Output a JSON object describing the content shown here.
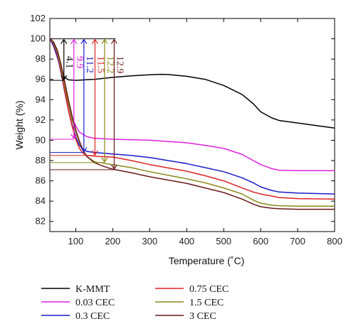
{
  "chart_data": {
    "type": "line",
    "title": "",
    "xlabel": "Temperature (˚C)",
    "ylabel": "Weight (%)",
    "xlim": [
      30,
      800
    ],
    "ylim": [
      81,
      102
    ],
    "xticks": [
      "100",
      "200",
      "300",
      "400",
      "500",
      "600",
      "700",
      "800"
    ],
    "yticks": [
      "82",
      "84",
      "86",
      "88",
      "90",
      "92",
      "94",
      "96",
      "98",
      "100",
      "102"
    ],
    "grid": false,
    "legend_position": "bottom",
    "series": [
      {
        "name": "K-MMT",
        "color": "#000000",
        "x": [
          30,
          40,
          50,
          60,
          70,
          80,
          100,
          150,
          200,
          250,
          300,
          330,
          350,
          400,
          450,
          500,
          550,
          580,
          600,
          630,
          650,
          700,
          750,
          800
        ],
        "y": [
          100,
          99.3,
          98.2,
          97.0,
          96.2,
          95.95,
          95.9,
          96.0,
          96.2,
          96.35,
          96.45,
          96.5,
          96.48,
          96.3,
          96.0,
          95.4,
          94.5,
          93.6,
          92.8,
          92.2,
          91.95,
          91.7,
          91.45,
          91.2
        ]
      },
      {
        "name": "0.03 CEC",
        "color": "#e020e0",
        "x": [
          30,
          40,
          50,
          60,
          70,
          80,
          90,
          100,
          110,
          130,
          150,
          200,
          300,
          400,
          450,
          500,
          550,
          580,
          600,
          630,
          650,
          700,
          800
        ],
        "y": [
          100,
          99.4,
          98.3,
          96.8,
          95.0,
          93.5,
          92.3,
          91.4,
          90.8,
          90.35,
          90.2,
          90.1,
          90.0,
          89.75,
          89.5,
          89.2,
          88.6,
          88.0,
          87.6,
          87.2,
          87.05,
          87.0,
          87.0
        ]
      },
      {
        "name": "0.3 CEC",
        "color": "#1a1acc",
        "x": [
          30,
          40,
          50,
          60,
          70,
          80,
          90,
          100,
          110,
          120,
          130,
          150,
          200,
          250,
          300,
          400,
          450,
          500,
          550,
          580,
          600,
          630,
          650,
          700,
          800
        ],
        "y": [
          100,
          99.5,
          98.4,
          96.7,
          94.8,
          93.0,
          91.5,
          90.3,
          89.5,
          89.1,
          88.9,
          88.8,
          88.65,
          88.5,
          88.3,
          87.7,
          87.3,
          86.9,
          86.3,
          85.8,
          85.4,
          85.05,
          84.9,
          84.8,
          84.7
        ]
      },
      {
        "name": "0.75 CEC",
        "color": "#dd2222",
        "x": [
          30,
          40,
          50,
          60,
          70,
          80,
          90,
          100,
          110,
          120,
          130,
          150,
          160,
          200,
          250,
          300,
          400,
          450,
          500,
          550,
          580,
          600,
          630,
          650,
          700,
          800
        ],
        "y": [
          100,
          99.6,
          98.6,
          96.9,
          94.9,
          93.0,
          91.4,
          90.1,
          89.2,
          88.7,
          88.5,
          88.45,
          88.4,
          88.35,
          88.0,
          87.6,
          86.95,
          86.5,
          86.0,
          85.3,
          84.9,
          84.7,
          84.5,
          84.35,
          84.25,
          84.2
        ]
      },
      {
        "name": "1.5 CEC",
        "color": "#8a8a1a",
        "x": [
          30,
          40,
          50,
          60,
          70,
          80,
          90,
          100,
          110,
          120,
          130,
          150,
          160,
          170,
          180,
          200,
          250,
          300,
          400,
          450,
          500,
          550,
          580,
          600,
          630,
          650,
          700,
          800
        ],
        "y": [
          100,
          99.6,
          98.7,
          97.2,
          95.4,
          93.6,
          92.0,
          90.8,
          89.8,
          89.0,
          88.4,
          87.9,
          87.8,
          87.8,
          87.7,
          87.6,
          87.3,
          86.9,
          86.2,
          85.8,
          85.3,
          84.7,
          84.1,
          83.8,
          83.6,
          83.55,
          83.5,
          83.5
        ]
      },
      {
        "name": "3 CEC",
        "color": "#6a1a1a",
        "x": [
          30,
          40,
          50,
          60,
          70,
          80,
          90,
          100,
          110,
          120,
          130,
          150,
          170,
          190,
          200,
          250,
          300,
          400,
          450,
          500,
          550,
          580,
          600,
          630,
          650,
          700,
          800
        ],
        "y": [
          100,
          99.7,
          98.9,
          97.5,
          95.8,
          94.0,
          92.4,
          91.0,
          89.9,
          89.0,
          88.4,
          87.8,
          87.5,
          87.25,
          87.15,
          86.8,
          86.4,
          85.75,
          85.3,
          84.85,
          84.2,
          83.7,
          83.45,
          83.3,
          83.25,
          83.2,
          83.2
        ]
      }
    ],
    "annotations": [
      {
        "label": "4.1",
        "x": 68,
        "y_top": 100,
        "y_bottom": 95.9,
        "color": "#000000"
      },
      {
        "label": "9.9",
        "x": 95,
        "y_top": 100,
        "y_bottom": 90.1,
        "color": "#e020e0"
      },
      {
        "label": "11.2",
        "x": 122,
        "y_top": 100,
        "y_bottom": 88.8,
        "color": "#1a1acc"
      },
      {
        "label": "11.5",
        "x": 152,
        "y_top": 100,
        "y_bottom": 88.5,
        "color": "#dd2222"
      },
      {
        "label": "12.2",
        "x": 178,
        "y_top": 100,
        "y_bottom": 87.8,
        "color": "#8a8a1a"
      },
      {
        "label": "12.9",
        "x": 204,
        "y_top": 100,
        "y_bottom": 87.1,
        "color": "#6a1a1a"
      }
    ]
  }
}
